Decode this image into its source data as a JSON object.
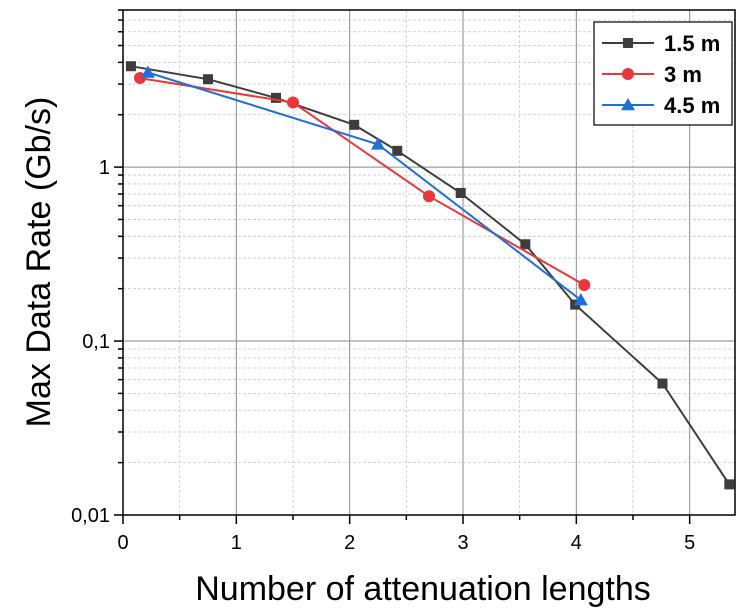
{
  "chart_data": {
    "type": "line",
    "xlabel": "Number of attenuation lengths",
    "ylabel": "Max Data Rate (Gb/s)",
    "xlim": [
      0,
      5.4
    ],
    "ylim": [
      0.01,
      8
    ],
    "yscale": "log",
    "grid": true,
    "legend_position": "top-right",
    "xticks": [
      {
        "value": 0,
        "label": "0"
      },
      {
        "value": 1,
        "label": "1"
      },
      {
        "value": 2,
        "label": "2"
      },
      {
        "value": 3,
        "label": "3"
      },
      {
        "value": 4,
        "label": "4"
      },
      {
        "value": 5,
        "label": "5"
      }
    ],
    "yticks": [
      {
        "value": 0.01,
        "label": "0,01"
      },
      {
        "value": 0.1,
        "label": "0,1"
      },
      {
        "value": 1,
        "label": "1"
      }
    ],
    "series": [
      {
        "name": "1.5 m",
        "color": "#3d3d3d",
        "marker": "square",
        "points": [
          [
            0.07,
            3.8
          ],
          [
            0.75,
            3.2
          ],
          [
            1.35,
            2.5
          ],
          [
            2.04,
            1.75
          ],
          [
            2.42,
            1.24
          ],
          [
            2.98,
            0.71
          ],
          [
            3.55,
            0.36
          ],
          [
            3.99,
            0.162
          ],
          [
            4.76,
            0.057
          ],
          [
            5.35,
            0.015
          ]
        ]
      },
      {
        "name": "3 m",
        "color": "#e8383b",
        "marker": "circle",
        "points": [
          [
            0.15,
            3.25
          ],
          [
            1.5,
            2.35
          ],
          [
            2.7,
            0.68
          ],
          [
            4.07,
            0.21
          ]
        ]
      },
      {
        "name": "4.5 m",
        "color": "#1f6fd6",
        "marker": "triangle",
        "points": [
          [
            0.22,
            3.5
          ],
          [
            2.25,
            1.35
          ],
          [
            4.04,
            0.172
          ]
        ]
      }
    ]
  }
}
